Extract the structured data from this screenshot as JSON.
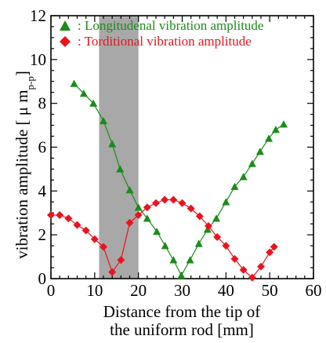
{
  "chart_data": {
    "type": "line",
    "xlabel_lines": [
      "Distance from the tip of",
      "the uniform rod [mm]"
    ],
    "ylabel": "vibration amplitude [ μ m",
    "ylabel_sub": "p-p",
    "ylabel_end": "]",
    "xlim": [
      0,
      60
    ],
    "ylim": [
      0,
      12
    ],
    "xticks": [
      "0",
      "10",
      "20",
      "30",
      "40",
      "50",
      "60"
    ],
    "yticks": [
      "0",
      "2",
      "4",
      "6",
      "8",
      "10",
      "12"
    ],
    "shaded_region": [
      11,
      20
    ],
    "grid": false,
    "legend_position": "top-left",
    "series": [
      {
        "name": ": Longitudenal vibration amplitude",
        "color": "#1a8c1a",
        "marker": "triangle",
        "points": [
          [
            5.3,
            8.9
          ],
          [
            7.5,
            8.45
          ],
          [
            9.7,
            8.0
          ],
          [
            12.0,
            7.2
          ],
          [
            14.0,
            6.15
          ],
          [
            15.8,
            5.0
          ],
          [
            18.0,
            4.05
          ],
          [
            20.0,
            3.25
          ],
          [
            22.0,
            2.75
          ],
          [
            24.2,
            2.15
          ],
          [
            26.1,
            1.5
          ],
          [
            28.0,
            0.85
          ],
          [
            29.8,
            0.15
          ],
          [
            31.8,
            0.85
          ],
          [
            33.8,
            1.6
          ],
          [
            35.8,
            2.25
          ],
          [
            37.8,
            2.75
          ],
          [
            40.0,
            3.5
          ],
          [
            42.0,
            4.2
          ],
          [
            44.0,
            4.65
          ],
          [
            46.0,
            5.25
          ],
          [
            47.8,
            5.8
          ],
          [
            49.8,
            6.4
          ],
          [
            51.4,
            6.8
          ],
          [
            53.2,
            7.05
          ]
        ]
      },
      {
        "name": ": Torditional vibration amplitude",
        "color": "#e8141e",
        "marker": "diamond",
        "points": [
          [
            0.0,
            2.9
          ],
          [
            2.0,
            2.9
          ],
          [
            4.0,
            2.75
          ],
          [
            6.0,
            2.45
          ],
          [
            8.0,
            2.2
          ],
          [
            10.0,
            1.8
          ],
          [
            12.0,
            1.45
          ],
          [
            14.0,
            0.3
          ],
          [
            16.0,
            0.85
          ],
          [
            18.0,
            2.55
          ],
          [
            20.0,
            2.9
          ],
          [
            22.0,
            3.25
          ],
          [
            24.0,
            3.45
          ],
          [
            26.0,
            3.6
          ],
          [
            28.0,
            3.6
          ],
          [
            30.0,
            3.45
          ],
          [
            32.0,
            3.2
          ],
          [
            34.0,
            2.85
          ],
          [
            36.0,
            2.4
          ],
          [
            38.0,
            1.9
          ],
          [
            40.0,
            1.5
          ],
          [
            42.0,
            0.9
          ],
          [
            44.0,
            0.4
          ],
          [
            46.0,
            0.05
          ],
          [
            48.0,
            0.55
          ],
          [
            50.0,
            1.2
          ],
          [
            51.0,
            1.45
          ]
        ]
      }
    ]
  }
}
